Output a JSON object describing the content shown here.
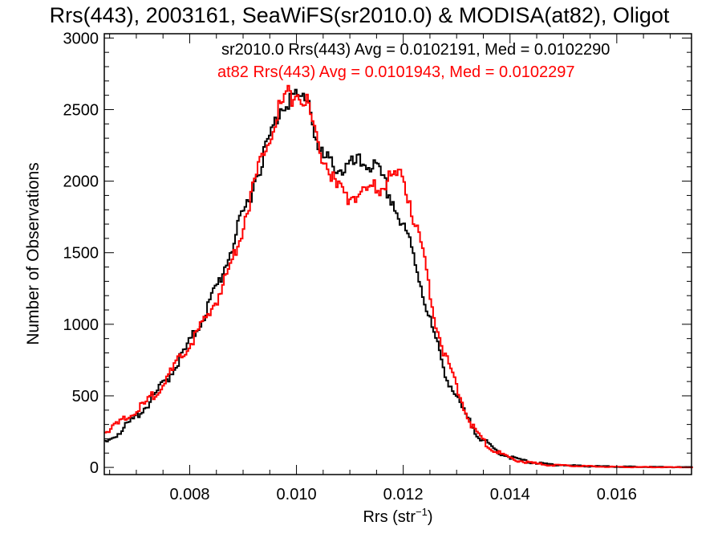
{
  "chart_data": {
    "type": "line",
    "title": "Rrs(443), 2003161, SeaWiFS(sr2010.0) & MODISA(at82), Oligot",
    "xlabel": "Rrs (str",
    "xlabel_sup": "−1",
    "xlabel_end": ")",
    "ylabel": "Number of Observations",
    "xlim": [
      0.0064,
      0.0174
    ],
    "ylim": [
      -50,
      3030
    ],
    "x_ticks": [
      0.008,
      0.01,
      0.012,
      0.014,
      0.016
    ],
    "x_tick_labels": [
      "0.008",
      "0.010",
      "0.012",
      "0.014",
      "0.016"
    ],
    "y_ticks": [
      0,
      500,
      1000,
      1500,
      2000,
      2500,
      3000
    ],
    "y_tick_labels": [
      "0",
      "500",
      "1000",
      "1500",
      "2000",
      "2500",
      "3000"
    ],
    "grid": false,
    "legend_position": "top-right",
    "annotations": [
      {
        "text": "sr2010.0 Rrs(443) Avg = 0.0102191, Med = 0.0102290",
        "color": "#000000"
      },
      {
        "text": "at82 Rrs(443) Avg = 0.0101943, Med = 0.0102297",
        "color": "#ff0000"
      }
    ],
    "series": [
      {
        "color": "#000000",
        "x": [
          0.0064,
          0.0068,
          0.0072,
          0.0076,
          0.008,
          0.0083,
          0.0086,
          0.0088,
          0.009,
          0.0092,
          0.0094,
          0.0096,
          0.0097,
          0.0098,
          0.0099,
          0.01,
          0.0101,
          0.0102,
          0.0103,
          0.0104,
          0.0105,
          0.0106,
          0.0107,
          0.0108,
          0.0109,
          0.011,
          0.0111,
          0.0112,
          0.0113,
          0.0114,
          0.0115,
          0.0116,
          0.0117,
          0.0118,
          0.0119,
          0.012,
          0.0121,
          0.0122,
          0.0123,
          0.0124,
          0.0125,
          0.0126,
          0.0127,
          0.0128,
          0.013,
          0.0132,
          0.0134,
          0.0136,
          0.0138,
          0.014,
          0.0143,
          0.0146,
          0.015,
          0.0155,
          0.016,
          0.0165,
          0.017,
          0.0174
        ],
        "values": [
          170,
          290,
          440,
          640,
          880,
          1100,
          1360,
          1570,
          1780,
          2000,
          2220,
          2420,
          2530,
          2570,
          2590,
          2560,
          2580,
          2600,
          2400,
          2200,
          2150,
          2130,
          2120,
          2080,
          2090,
          2100,
          2120,
          2120,
          2130,
          2110,
          2070,
          2000,
          1920,
          1850,
          1740,
          1650,
          1580,
          1450,
          1300,
          1150,
          1000,
          880,
          750,
          630,
          470,
          330,
          220,
          150,
          100,
          70,
          40,
          25,
          15,
          8,
          5,
          3,
          2,
          1
        ]
      },
      {
        "color": "#ff0000",
        "x": [
          0.0064,
          0.0068,
          0.0072,
          0.0076,
          0.008,
          0.0083,
          0.0086,
          0.0088,
          0.009,
          0.0092,
          0.0094,
          0.0096,
          0.0097,
          0.0098,
          0.0099,
          0.01,
          0.0101,
          0.0102,
          0.0103,
          0.0104,
          0.0105,
          0.0106,
          0.0107,
          0.0108,
          0.0109,
          0.011,
          0.0111,
          0.0112,
          0.0113,
          0.0114,
          0.0115,
          0.0116,
          0.0117,
          0.0118,
          0.0119,
          0.012,
          0.0121,
          0.0122,
          0.0123,
          0.0124,
          0.0125,
          0.0126,
          0.0127,
          0.0128,
          0.013,
          0.0132,
          0.0134,
          0.0136,
          0.0138,
          0.014,
          0.0143,
          0.0146,
          0.015,
          0.0155,
          0.016,
          0.0165,
          0.017,
          0.0174
        ],
        "values": [
          250,
          340,
          460,
          640,
          870,
          1040,
          1260,
          1470,
          1720,
          1990,
          2250,
          2450,
          2540,
          2580,
          2600,
          2610,
          2590,
          2520,
          2380,
          2240,
          2150,
          2080,
          1970,
          1920,
          1910,
          1890,
          1900,
          1920,
          1930,
          1950,
          1930,
          1980,
          2020,
          2040,
          2030,
          2000,
          1870,
          1720,
          1570,
          1400,
          1200,
          1000,
          870,
          740,
          540,
          340,
          220,
          140,
          95,
          60,
          35,
          20,
          12,
          7,
          4,
          2,
          1,
          1
        ]
      }
    ]
  }
}
